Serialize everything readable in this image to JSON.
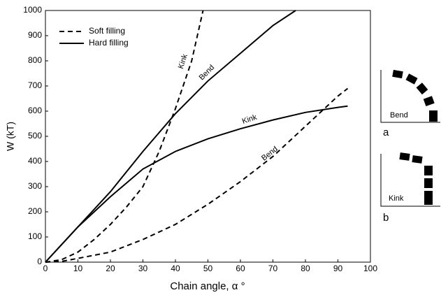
{
  "chart_data": {
    "type": "line",
    "xlabel": "Chain angle, α °",
    "ylabel": "W (kT)",
    "xlim": [
      0,
      100
    ],
    "xticks": [
      0,
      10,
      20,
      30,
      40,
      50,
      60,
      70,
      80,
      90,
      100
    ],
    "ylim": [
      0,
      1000
    ],
    "yticks": [
      0,
      100,
      200,
      300,
      400,
      500,
      600,
      700,
      800,
      900,
      1000
    ],
    "legend": "upper left",
    "series": [
      {
        "name": "Soft filling",
        "color": "#000000",
        "dashed": true,
        "curves": [
          {
            "x": [
              0,
              5,
              10,
              15,
              20,
              25,
              30,
              35,
              40,
              45,
              48.5
            ],
            "values": [
              0,
              10,
              40,
              90,
              150,
              220,
              300,
              440,
              610,
              800,
              1000
            ]
          },
          {
            "x": [
              0,
              5,
              10,
              20,
              30,
              40,
              50,
              60,
              70,
              80,
              90,
              93
            ],
            "values": [
              0,
              3,
              15,
              40,
              90,
              150,
              230,
              320,
              420,
              540,
              660,
              690
            ]
          }
        ]
      },
      {
        "name": "Hard filling",
        "color": "#000000",
        "dashed": false,
        "curves": [
          {
            "x": [
              0,
              10,
              20,
              30,
              40,
              50,
              60,
              70,
              77
            ],
            "values": [
              0,
              140,
              280,
              440,
              590,
              720,
              830,
              940,
              1000
            ]
          },
          {
            "x": [
              0,
              10,
              20,
              30,
              40,
              50,
              60,
              70,
              80,
              90,
              93
            ],
            "values": [
              0,
              140,
              260,
              370,
              440,
              490,
              530,
              565,
              595,
              615,
              620
            ]
          }
        ]
      }
    ],
    "annotations": [
      {
        "text": "Kink"
      },
      {
        "text": "Bend"
      },
      {
        "text": "Kink"
      },
      {
        "text": "Bend"
      }
    ],
    "insets": [
      {
        "label": "Bend",
        "caption": "a"
      },
      {
        "label": "Kink",
        "caption": "b"
      }
    ]
  }
}
